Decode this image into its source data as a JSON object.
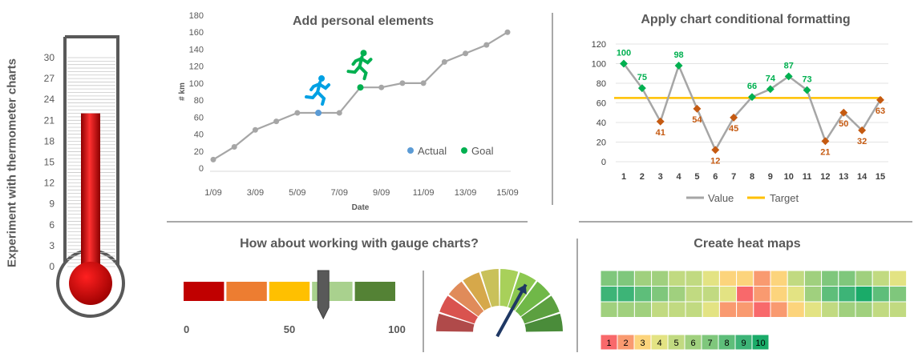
{
  "thermometer": {
    "side_title": "Experiment with thermometer charts",
    "ticks": [
      "0",
      "3",
      "6",
      "9",
      "12",
      "15",
      "18",
      "21",
      "24",
      "27",
      "30"
    ],
    "value": 22,
    "max": 30,
    "fill_color": "#e00000",
    "frame_color": "#595959"
  },
  "line_chart": {
    "chart_data": {
      "type": "line",
      "title": "Add personal elements",
      "xlabel": "Date",
      "ylabel": "# km",
      "x": [
        "1/09",
        "2/09",
        "3/09",
        "4/09",
        "5/09",
        "6/09",
        "7/09",
        "8/09",
        "9/09",
        "10/09",
        "11/09",
        "12/09",
        "13/09",
        "14/09",
        "15/09"
      ],
      "x_tick_labels": [
        "1/09",
        "3/09",
        "5/09",
        "7/09",
        "9/09",
        "11/09",
        "13/09",
        "15/09"
      ],
      "values": [
        10,
        25,
        45,
        55,
        65,
        65,
        65,
        95,
        95,
        100,
        100,
        125,
        135,
        145,
        160
      ],
      "y_ticks": [
        "0",
        "20",
        "40",
        "60",
        "80",
        "100",
        "120",
        "140",
        "160",
        "180"
      ],
      "ylim": [
        0,
        180
      ],
      "markers": [
        {
          "name": "Actual",
          "x_index": 5,
          "value": 65,
          "color": "#5b9bd5",
          "runner_color": "#00a0e3"
        },
        {
          "name": "Goal",
          "x_index": 7,
          "value": 95,
          "color": "#00b050",
          "runner_color": "#00b050"
        }
      ],
      "legend": [
        "Actual",
        "Goal"
      ],
      "line_color": "#a6a6a6"
    }
  },
  "conditional_chart": {
    "chart_data": {
      "type": "line",
      "title": "Apply chart conditional formatting",
      "x": [
        "1",
        "2",
        "3",
        "4",
        "5",
        "6",
        "7",
        "8",
        "9",
        "10",
        "11",
        "12",
        "13",
        "14",
        "15"
      ],
      "series": [
        {
          "name": "Value",
          "values": [
            100,
            75,
            41,
            98,
            54,
            12,
            45,
            66,
            74,
            87,
            73,
            21,
            50,
            32,
            63
          ],
          "color": "#a6a6a6"
        },
        {
          "name": "Target",
          "values": [
            65,
            65,
            65,
            65,
            65,
            65,
            65,
            65,
            65,
            65,
            65,
            65,
            65,
            65,
            65
          ],
          "color": "#ffc000"
        }
      ],
      "target": 65,
      "above_color": "#00b050",
      "below_color": "#c55a11",
      "y_ticks": [
        "0",
        "20",
        "40",
        "60",
        "80",
        "100",
        "120"
      ],
      "ylim": [
        0,
        120
      ],
      "legend": [
        "Value",
        "Target"
      ]
    }
  },
  "gauge_section": {
    "title": "How about working with gauge charts?",
    "bar_gauge": {
      "segments": [
        "#c00000",
        "#ed7d31",
        "#ffc000",
        "#a9d18e",
        "#548235"
      ],
      "value": 66,
      "tick_labels": [
        "0",
        "50",
        "100"
      ]
    },
    "dial_gauge": {
      "segments": [
        "#b04a4a",
        "#d9534f",
        "#e08b5a",
        "#d6a84a",
        "#c9c15a",
        "#a8d05a",
        "#8cc850",
        "#70b848",
        "#5ca040",
        "#4a8c3a"
      ],
      "needle_value": 0.66,
      "needle_color": "#1f3864"
    }
  },
  "heatmap": {
    "title": "Create heat maps",
    "rows": [
      [
        7,
        7,
        6,
        6,
        5,
        5,
        4,
        3,
        3,
        2,
        3,
        5,
        6,
        7,
        7,
        6,
        5,
        4
      ],
      [
        9,
        9,
        8,
        7,
        6,
        5,
        5,
        4,
        1,
        2,
        3,
        4,
        6,
        8,
        9,
        10,
        8,
        7
      ],
      [
        6,
        6,
        6,
        5,
        5,
        5,
        4,
        2,
        2,
        1,
        2,
        3,
        4,
        5,
        6,
        6,
        5,
        5
      ]
    ],
    "scale": [
      "1",
      "2",
      "3",
      "4",
      "5",
      "6",
      "7",
      "8",
      "9",
      "10"
    ],
    "scale_colors": [
      "#f8696b",
      "#f99a70",
      "#fcd47c",
      "#e3e383",
      "#c1da81",
      "#a0d07e",
      "#7fc77c",
      "#5ebe7a",
      "#3db477",
      "#1aab69"
    ]
  }
}
